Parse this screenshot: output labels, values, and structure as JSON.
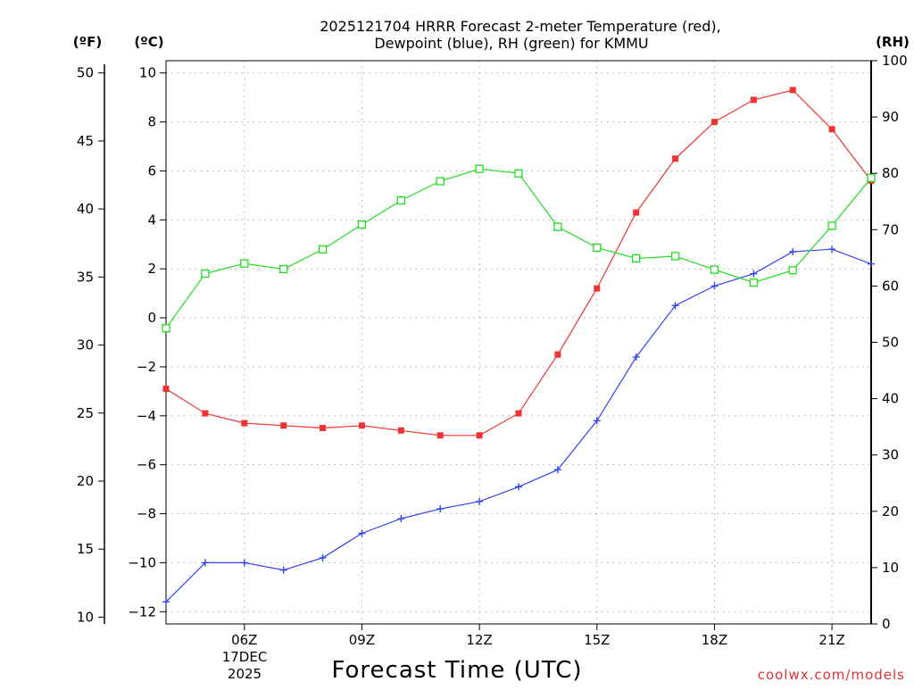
{
  "chart_data": {
    "type": "line",
    "title_line1": "2025121704 HRRR Forecast 2-meter Temperature (red),",
    "title_line2": "Dewpoint (blue), RH (green) for KMMU",
    "xlabel": "Forecast Time (UTC)",
    "credit": "coolwx.com/models",
    "units": {
      "fahrenheit": "(ºF)",
      "celsius": "(ºC)",
      "rh": "(RH)"
    },
    "date_label": {
      "day": "17DEC",
      "year": "2025"
    },
    "x_hours": [
      4,
      5,
      6,
      7,
      8,
      9,
      10,
      11,
      12,
      13,
      14,
      15,
      16,
      17,
      18,
      19,
      20,
      21,
      22
    ],
    "xlim_hours": [
      4,
      22
    ],
    "x_ticks": [
      {
        "hour": 6,
        "label": "06Z"
      },
      {
        "hour": 9,
        "label": "09Z"
      },
      {
        "hour": 12,
        "label": "12Z"
      },
      {
        "hour": 15,
        "label": "15Z"
      },
      {
        "hour": 18,
        "label": "18Z"
      },
      {
        "hour": 21,
        "label": "21Z"
      }
    ],
    "celsius_axis": {
      "ylim": [
        -12.5,
        10.5
      ],
      "ticks": [
        "10",
        "8",
        "6",
        "4",
        "2",
        "0",
        "−2",
        "−4",
        "−6",
        "−8",
        "−10",
        "−12"
      ]
    },
    "fahrenheit_axis": {
      "ticks": [
        "50",
        "45",
        "40",
        "35",
        "30",
        "25",
        "20",
        "15",
        "10"
      ]
    },
    "rh_axis": {
      "ylim": [
        0,
        100
      ],
      "ticks": [
        "100",
        "90",
        "80",
        "70",
        "60",
        "50",
        "40",
        "30",
        "20",
        "10",
        "0"
      ]
    },
    "series": [
      {
        "name": "Temperature",
        "unit": "C",
        "color": "#ee3333",
        "marker": "filled-square",
        "values": [
          -2.9,
          -3.9,
          -4.3,
          -4.4,
          -4.5,
          -4.4,
          -4.6,
          -4.8,
          -4.8,
          -3.9,
          -1.5,
          1.2,
          4.3,
          6.5,
          8.0,
          8.9,
          9.3,
          7.7,
          5.6
        ]
      },
      {
        "name": "Dewpoint",
        "unit": "C",
        "color": "#3344ee",
        "marker": "plus",
        "values": [
          -11.6,
          -10.0,
          -10.0,
          -10.3,
          -9.8,
          -8.8,
          -8.2,
          -7.8,
          -7.5,
          -6.9,
          -6.2,
          -4.2,
          -1.6,
          0.5,
          1.3,
          1.8,
          2.7,
          2.8,
          2.2
        ]
      },
      {
        "name": "RH",
        "unit": "%",
        "color": "#22dd22",
        "marker": "open-square",
        "values": [
          52.5,
          62.2,
          64.0,
          63.0,
          66.5,
          70.9,
          75.2,
          78.6,
          80.8,
          80.0,
          70.5,
          66.8,
          64.9,
          65.3,
          62.9,
          60.6,
          62.8,
          70.7,
          79.2
        ]
      }
    ]
  }
}
